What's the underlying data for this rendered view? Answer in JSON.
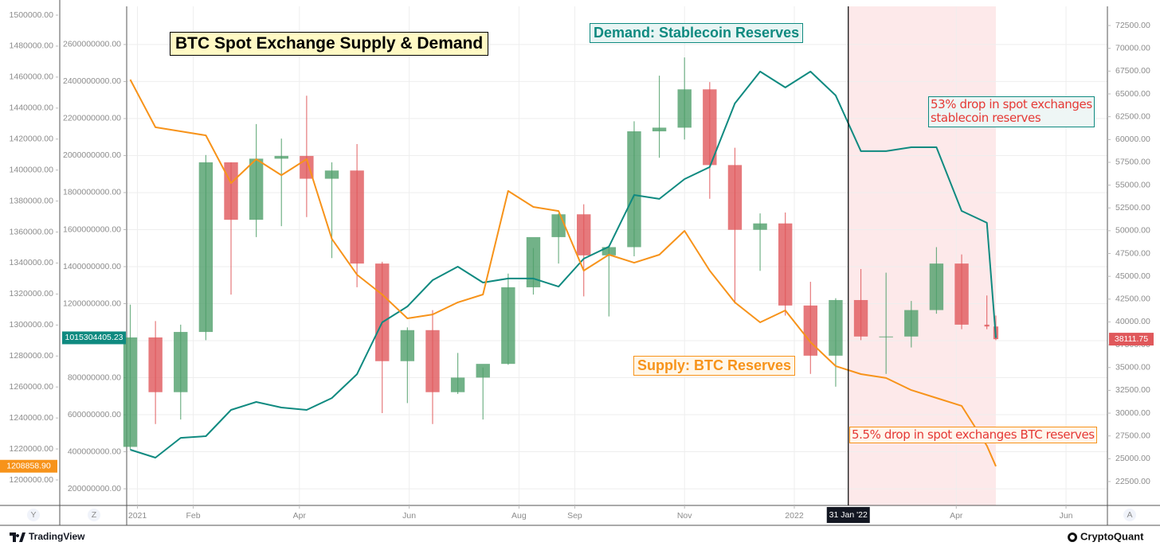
{
  "chart_data": {
    "type": "candlestick",
    "title": "BTC Spot Exchange Supply & Demand",
    "x": [
      "2020-12-28",
      "2021-01-11",
      "2021-01-25",
      "2021-02-08",
      "2021-02-22",
      "2021-03-08",
      "2021-03-22",
      "2021-04-05",
      "2021-04-19",
      "2021-05-03",
      "2021-05-17",
      "2021-05-31",
      "2021-06-14",
      "2021-06-28",
      "2021-07-12",
      "2021-07-26",
      "2021-08-09",
      "2021-08-23",
      "2021-09-06",
      "2021-09-20",
      "2021-10-04",
      "2021-10-18",
      "2021-11-01",
      "2021-11-15",
      "2021-11-29",
      "2021-12-13",
      "2021-12-27",
      "2022-01-10",
      "2022-01-24",
      "2022-02-07",
      "2022-02-21",
      "2022-03-07",
      "2022-03-21",
      "2022-04-04",
      "2022-04-18",
      "2022-04-23"
    ],
    "xlim": [
      "2020-12-26",
      "2022-06-24"
    ],
    "xticks": [
      {
        "value": "2021-01-01",
        "label": "2021"
      },
      {
        "value": "2021-02-01",
        "label": "Feb"
      },
      {
        "value": "2021-04-01",
        "label": "Apr"
      },
      {
        "value": "2021-06-01",
        "label": "Jun"
      },
      {
        "value": "2021-08-01",
        "label": "Aug"
      },
      {
        "value": "2021-09-01",
        "label": "Sep"
      },
      {
        "value": "2021-11-01",
        "label": "Nov"
      },
      {
        "value": "2022-01-01",
        "label": "2022"
      },
      {
        "value": "2022-04-01",
        "label": "Apr"
      },
      {
        "value": "2022-06-01",
        "label": "Jun"
      }
    ],
    "candles": {
      "open": [
        26300,
        38300,
        32300,
        38900,
        57500,
        51200,
        57900,
        58200,
        55700,
        56600,
        46400,
        35700,
        39100,
        32300,
        33900,
        35400,
        43800,
        49300,
        51800,
        47300,
        48200,
        60900,
        61300,
        65500,
        57200,
        50100,
        50800,
        41800,
        36300,
        42400,
        38400,
        38400,
        41300,
        46400,
        39700,
        39500
      ],
      "high": [
        41900,
        40100,
        39700,
        58300,
        57500,
        61700,
        60100,
        64800,
        57500,
        59500,
        46600,
        39400,
        41300,
        36600,
        35000,
        45300,
        48100,
        51900,
        52900,
        48400,
        62000,
        67000,
        69000,
        66300,
        59100,
        51900,
        52000,
        44400,
        42600,
        45800,
        45400,
        42300,
        48200,
        47400,
        42900,
        40700
      ],
      "low": [
        26000,
        28800,
        29300,
        38000,
        43000,
        49300,
        50500,
        51500,
        47000,
        43800,
        30000,
        31100,
        28800,
        32100,
        29300,
        35300,
        43000,
        46400,
        42800,
        40600,
        47200,
        58000,
        60000,
        53500,
        42000,
        45600,
        40700,
        34300,
        32900,
        38000,
        34300,
        37200,
        40900,
        39200,
        39200,
        38000
      ],
      "close": [
        38300,
        32300,
        38900,
        57500,
        51200,
        57900,
        58200,
        55700,
        56600,
        46400,
        35700,
        39100,
        32300,
        33900,
        35400,
        43800,
        49300,
        51800,
        47300,
        48200,
        60900,
        61300,
        65500,
        57200,
        50100,
        50800,
        41800,
        36300,
        42400,
        38400,
        38400,
        41300,
        46400,
        39700,
        39500,
        38111.75
      ],
      "up_color": "#4f9f6a",
      "down_color": "#e0585b",
      "last_label": {
        "value": 38111.75,
        "label": "38111.75"
      }
    },
    "series": [
      {
        "name": "Demand: Stablecoin Reserves",
        "color": "#0f8a80",
        "axis": "y2",
        "values": [
          411000000,
          368000000,
          475000000,
          484000000,
          626000000,
          669000000,
          639000000,
          626000000,
          690000000,
          819000000,
          1099000000,
          1185000000,
          1327000000,
          1400000000,
          1314000000,
          1336000000,
          1336000000,
          1292000000,
          1443000000,
          1508000000,
          1787000000,
          1766000000,
          1873000000,
          1938000000,
          2282000000,
          2454000000,
          2368000000,
          2454000000,
          2325000000,
          2024000000,
          2024000000,
          2045000000,
          2045000000,
          1701000000,
          1637000000,
          1015304405.23
        ],
        "last_label": {
          "value": 1015304405.23,
          "label": "1015304405.23"
        }
      },
      {
        "name": "Supply: BTC Reserves",
        "color": "#f7931a",
        "axis": "y3",
        "values": [
          1458400,
          1427600,
          1425000,
          1422400,
          1391600,
          1407000,
          1396700,
          1407000,
          1355600,
          1332500,
          1319700,
          1304300,
          1306800,
          1314600,
          1319700,
          1386500,
          1376200,
          1373600,
          1335100,
          1345400,
          1340200,
          1345400,
          1360800,
          1335100,
          1314600,
          1301700,
          1309400,
          1288900,
          1273500,
          1268300,
          1265800,
          1258000,
          1252900,
          1247800,
          1222100,
          1208858.9
        ],
        "last_label": {
          "value": 1208858.9,
          "label": "1208858.90"
        }
      }
    ],
    "annotations": [
      {
        "lines": [
          "53% drop in spot exchanges",
          "stablecoin reserves"
        ]
      },
      {
        "lines": [
          "5.5% drop in spot exchanges BTC reserves"
        ]
      }
    ],
    "highlight": {
      "start": "2022-01-31",
      "end": "2022-04-23",
      "label": "31 Jan '22",
      "color": "#fde9ea"
    },
    "ylim": [
      19880,
      74600
    ],
    "yticks": [
      {
        "value": 72500,
        "label": "72500.00"
      },
      {
        "value": 70000,
        "label": "70000.00"
      },
      {
        "value": 67500,
        "label": "67500.00"
      },
      {
        "value": 65000,
        "label": "65000.00"
      },
      {
        "value": 62500,
        "label": "62500.00"
      },
      {
        "value": 60000,
        "label": "60000.00"
      },
      {
        "value": 57500,
        "label": "57500.00"
      },
      {
        "value": 55000,
        "label": "55000.00"
      },
      {
        "value": 52500,
        "label": "52500.00"
      },
      {
        "value": 50000,
        "label": "50000.00"
      },
      {
        "value": 47500,
        "label": "47500.00"
      },
      {
        "value": 45000,
        "label": "45000.00"
      },
      {
        "value": 42500,
        "label": "42500.00"
      },
      {
        "value": 40000,
        "label": "40000.00"
      },
      {
        "value": 37500,
        "label": "37500.00"
      },
      {
        "value": 35000,
        "label": "35000.00"
      },
      {
        "value": 32500,
        "label": "32500.00"
      },
      {
        "value": 30000,
        "label": "30000.00"
      },
      {
        "value": 27500,
        "label": "27500.00"
      },
      {
        "value": 25000,
        "label": "25000.00"
      },
      {
        "value": 22500,
        "label": "22500.00"
      }
    ],
    "y2lim": [
      110000000,
      2806000000
    ],
    "y2ticks": [
      {
        "value": 2600000000,
        "label": "2600000000.00"
      },
      {
        "value": 2400000000,
        "label": "2400000000.00"
      },
      {
        "value": 2200000000,
        "label": "2200000000.00"
      },
      {
        "value": 2000000000,
        "label": "2000000000.00"
      },
      {
        "value": 1800000000,
        "label": "1800000000.00"
      },
      {
        "value": 1600000000,
        "label": "1600000000.00"
      },
      {
        "value": 1400000000,
        "label": "1400000000.00"
      },
      {
        "value": 1200000000,
        "label": "1200000000.00"
      },
      {
        "value": 1000000000,
        "label": "1000000000.00"
      },
      {
        "value": 800000000,
        "label": "800000000.00"
      },
      {
        "value": 600000000,
        "label": "600000000.00"
      },
      {
        "value": 400000000,
        "label": "400000000.00"
      },
      {
        "value": 200000000,
        "label": "200000000.00"
      }
    ],
    "y3lim": [
      1183560,
      1505650
    ],
    "y3ticks": [
      {
        "value": 1500000,
        "label": "1500000.00"
      },
      {
        "value": 1480000,
        "label": "1480000.00"
      },
      {
        "value": 1460000,
        "label": "1460000.00"
      },
      {
        "value": 1440000,
        "label": "1440000.00"
      },
      {
        "value": 1420000,
        "label": "1420000.00"
      },
      {
        "value": 1400000,
        "label": "1400000.00"
      },
      {
        "value": 1380000,
        "label": "1380000.00"
      },
      {
        "value": 1360000,
        "label": "1360000.00"
      },
      {
        "value": 1340000,
        "label": "1340000.00"
      },
      {
        "value": 1320000,
        "label": "1320000.00"
      },
      {
        "value": 1300000,
        "label": "1300000.00"
      },
      {
        "value": 1280000,
        "label": "1280000.00"
      },
      {
        "value": 1260000,
        "label": "1260000.00"
      },
      {
        "value": 1240000,
        "label": "1240000.00"
      },
      {
        "value": 1220000,
        "label": "1220000.00"
      },
      {
        "value": 1200000,
        "label": "1200000.00"
      }
    ],
    "grid": true
  },
  "toolbar": {
    "left_buttons": [
      "Y",
      "Z"
    ],
    "right_button": "A",
    "brand_left": "TradingView",
    "brand_right": "CryptoQuant"
  }
}
